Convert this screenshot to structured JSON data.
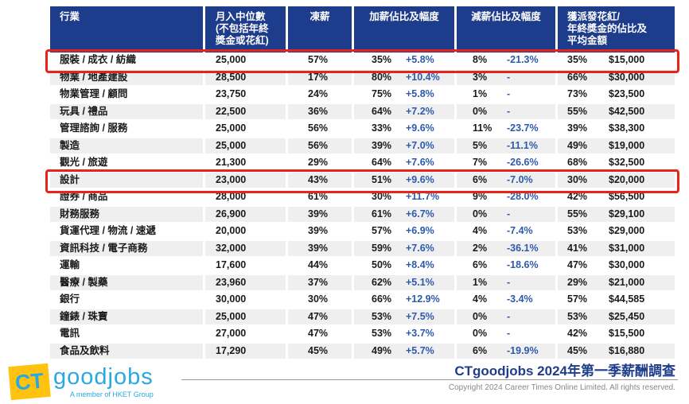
{
  "colors": {
    "header_bg": "#1e3c8c",
    "row_alt_bg": "#efefef",
    "accent_blue": "#2e5aac",
    "highlight_red": "#e8231a",
    "brand_cyan": "#29a9e1",
    "brand_yellow": "#ffc20e",
    "title_navy": "#1f3d8b"
  },
  "chart_data": {
    "type": "table",
    "title": "CTgoodjobs 2024年第一季薪酬調查",
    "column_groups": [
      {
        "key": "industry",
        "label": "行業",
        "lines": [
          "行業"
        ],
        "span": 1
      },
      {
        "key": "median",
        "label": "月入中位數 (不包括年終獎金或花紅)",
        "lines": [
          "月入中位數",
          "(不包括年終",
          "獎金或花紅)"
        ],
        "span": 1
      },
      {
        "key": "frozen",
        "label": "凍薪",
        "lines": [
          "凍薪"
        ],
        "span": 1
      },
      {
        "key": "raise",
        "label": "加薪佔比及幅度",
        "lines": [
          "加薪佔比及幅度"
        ],
        "span": 2
      },
      {
        "key": "cut",
        "label": "減薪佔比及幅度",
        "lines": [
          "減薪佔比及幅度"
        ],
        "span": 2
      },
      {
        "key": "bonus",
        "label": "獲派發花紅/年終獎金的佔比及平均金額",
        "lines": [
          "獲派發花紅/",
          "年終獎金的佔比及",
          "平均金額"
        ],
        "span": 2
      }
    ],
    "cell_keys": [
      "industry",
      "median",
      "frozen",
      "raise_pct",
      "raise_amt",
      "cut_pct",
      "cut_amt",
      "bonus_pct",
      "bonus_amt"
    ],
    "rows": [
      {
        "industry": "服裝 / 成衣 / 紡織",
        "median": "25,000",
        "frozen": "57%",
        "raise_pct": "35%",
        "raise_amt": "+5.8%",
        "cut_pct": "8%",
        "cut_amt": "-21.3%",
        "bonus_pct": "35%",
        "bonus_amt": "$15,000",
        "highlighted": true
      },
      {
        "industry": "物業 / 地產建設",
        "median": "28,500",
        "frozen": "17%",
        "raise_pct": "80%",
        "raise_amt": "+10.4%",
        "cut_pct": "3%",
        "cut_amt": "-",
        "bonus_pct": "66%",
        "bonus_amt": "$30,000",
        "highlighted": false
      },
      {
        "industry": "物業管理 / 顧問",
        "median": "23,750",
        "frozen": "24%",
        "raise_pct": "75%",
        "raise_amt": "+5.8%",
        "cut_pct": "1%",
        "cut_amt": "-",
        "bonus_pct": "73%",
        "bonus_amt": "$23,500",
        "highlighted": false
      },
      {
        "industry": "玩具 / 禮品",
        "median": "22,500",
        "frozen": "36%",
        "raise_pct": "64%",
        "raise_amt": "+7.2%",
        "cut_pct": "0%",
        "cut_amt": "-",
        "bonus_pct": "55%",
        "bonus_amt": "$42,500",
        "highlighted": false
      },
      {
        "industry": "管理諮詢 / 服務",
        "median": "25,000",
        "frozen": "56%",
        "raise_pct": "33%",
        "raise_amt": "+9.6%",
        "cut_pct": "11%",
        "cut_amt": "-23.7%",
        "bonus_pct": "39%",
        "bonus_amt": "$38,300",
        "highlighted": false
      },
      {
        "industry": "製造",
        "median": "25,000",
        "frozen": "56%",
        "raise_pct": "39%",
        "raise_amt": "+7.0%",
        "cut_pct": "5%",
        "cut_amt": "-11.1%",
        "bonus_pct": "49%",
        "bonus_amt": "$19,000",
        "highlighted": false
      },
      {
        "industry": "觀光 / 旅遊",
        "median": "21,300",
        "frozen": "29%",
        "raise_pct": "64%",
        "raise_amt": "+7.6%",
        "cut_pct": "7%",
        "cut_amt": "-26.6%",
        "bonus_pct": "68%",
        "bonus_amt": "$32,500",
        "highlighted": false
      },
      {
        "industry": "設計",
        "median": "23,000",
        "frozen": "43%",
        "raise_pct": "51%",
        "raise_amt": "+9.6%",
        "cut_pct": "6%",
        "cut_amt": "-7.0%",
        "bonus_pct": "30%",
        "bonus_amt": "$20,000",
        "highlighted": true
      },
      {
        "industry": "證券 / 商品",
        "median": "28,000",
        "frozen": "61%",
        "raise_pct": "30%",
        "raise_amt": "+11.7%",
        "cut_pct": "9%",
        "cut_amt": "-28.0%",
        "bonus_pct": "42%",
        "bonus_amt": "$56,500",
        "highlighted": false
      },
      {
        "industry": "財務服務",
        "median": "26,900",
        "frozen": "39%",
        "raise_pct": "61%",
        "raise_amt": "+6.7%",
        "cut_pct": "0%",
        "cut_amt": "-",
        "bonus_pct": "55%",
        "bonus_amt": "$29,100",
        "highlighted": false
      },
      {
        "industry": "貨運代理 / 物流 / 速遞",
        "median": "20,000",
        "frozen": "39%",
        "raise_pct": "57%",
        "raise_amt": "+6.9%",
        "cut_pct": "4%",
        "cut_amt": "-7.4%",
        "bonus_pct": "53%",
        "bonus_amt": "$29,000",
        "highlighted": false
      },
      {
        "industry": "資訊科技 / 電子商務",
        "median": "32,000",
        "frozen": "39%",
        "raise_pct": "59%",
        "raise_amt": "+7.6%",
        "cut_pct": "2%",
        "cut_amt": "-36.1%",
        "bonus_pct": "41%",
        "bonus_amt": "$31,000",
        "highlighted": false
      },
      {
        "industry": "運輸",
        "median": "17,600",
        "frozen": "44%",
        "raise_pct": "50%",
        "raise_amt": "+8.4%",
        "cut_pct": "6%",
        "cut_amt": "-18.6%",
        "bonus_pct": "47%",
        "bonus_amt": "$30,000",
        "highlighted": false
      },
      {
        "industry": "醫療 / 製藥",
        "median": "23,960",
        "frozen": "37%",
        "raise_pct": "62%",
        "raise_amt": "+5.1%",
        "cut_pct": "1%",
        "cut_amt": "-",
        "bonus_pct": "29%",
        "bonus_amt": "$21,000",
        "highlighted": false
      },
      {
        "industry": "銀行",
        "median": "30,000",
        "frozen": "30%",
        "raise_pct": "66%",
        "raise_amt": "+12.9%",
        "cut_pct": "4%",
        "cut_amt": "-3.4%",
        "bonus_pct": "57%",
        "bonus_amt": "$44,585",
        "highlighted": false
      },
      {
        "industry": "鐘錶 / 珠寶",
        "median": "25,000",
        "frozen": "47%",
        "raise_pct": "53%",
        "raise_amt": "+7.5%",
        "cut_pct": "0%",
        "cut_amt": "-",
        "bonus_pct": "53%",
        "bonus_amt": "$25,450",
        "highlighted": false
      },
      {
        "industry": "電訊",
        "median": "27,000",
        "frozen": "47%",
        "raise_pct": "53%",
        "raise_amt": "+3.7%",
        "cut_pct": "0%",
        "cut_amt": "-",
        "bonus_pct": "42%",
        "bonus_amt": "$15,500",
        "highlighted": false
      },
      {
        "industry": "食品及飲料",
        "median": "17,290",
        "frozen": "45%",
        "raise_pct": "49%",
        "raise_amt": "+5.7%",
        "cut_pct": "6%",
        "cut_amt": "-19.9%",
        "bonus_pct": "45%",
        "bonus_amt": "$16,880",
        "highlighted": false
      }
    ]
  },
  "footer": {
    "logo_ct": "CT",
    "logo_name": "goodjobs",
    "logo_tagline": "A member of HKET Group",
    "title": "CTgoodjobs 2024年第一季薪酬調查",
    "copyright": "Copyright 2024 Career Times Online Limited. All rights reserved."
  }
}
